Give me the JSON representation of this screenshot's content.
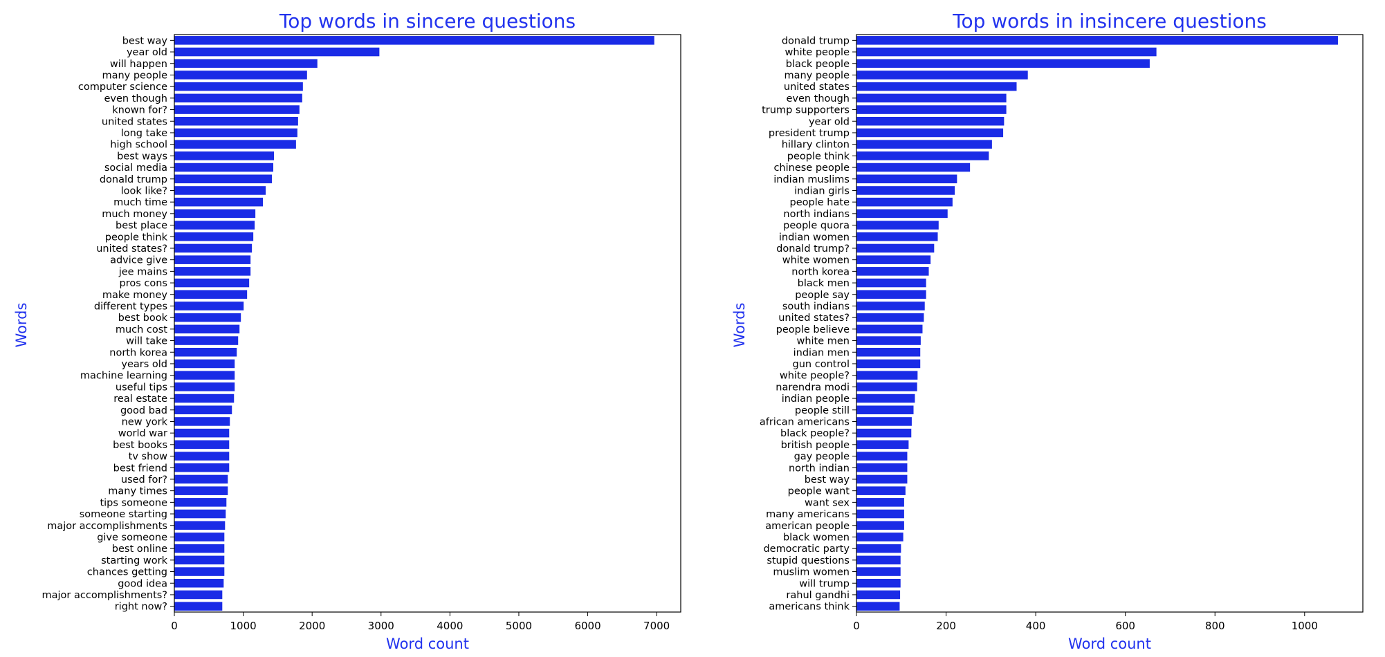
{
  "bar_color": "#1a2be6",
  "title_color": "#2233ee",
  "chart_data": [
    {
      "type": "bar",
      "orientation": "horizontal",
      "title": "Top words in sincere questions",
      "xlabel": "Word count",
      "ylabel": "Words",
      "xlim": [
        0,
        7350
      ],
      "xticks": [
        0,
        1000,
        2000,
        3000,
        4000,
        5000,
        6000,
        7000
      ],
      "categories": [
        "best way",
        "year old",
        "will happen",
        "many people",
        "computer science",
        "even though",
        "known for?",
        "united states",
        "long take",
        "high school",
        "best ways",
        "social media",
        "donald trump",
        "look like?",
        "much time",
        "much money",
        "best place",
        "people think",
        "united states?",
        "advice give",
        "jee mains",
        "pros cons",
        "make money",
        "different types",
        "best book",
        "much cost",
        "will take",
        "north korea",
        "years old",
        "machine learning",
        "useful tips",
        "real estate",
        "good bad",
        "new york",
        "world war",
        "best books",
        "tv show",
        "best friend",
        "used for?",
        "many times",
        "tips someone",
        "someone starting",
        "major accomplishments",
        "give someone",
        "best online",
        "starting work",
        "chances getting",
        "good idea",
        "major accomplishments?",
        "right now?"
      ],
      "values": [
        6970,
        2980,
        2080,
        1930,
        1870,
        1860,
        1820,
        1800,
        1790,
        1770,
        1450,
        1440,
        1420,
        1330,
        1290,
        1180,
        1170,
        1150,
        1130,
        1110,
        1110,
        1090,
        1060,
        1010,
        970,
        950,
        930,
        910,
        880,
        880,
        880,
        870,
        840,
        810,
        800,
        800,
        800,
        800,
        780,
        780,
        760,
        750,
        740,
        730,
        730,
        730,
        730,
        720,
        700,
        700
      ]
    },
    {
      "type": "bar",
      "orientation": "horizontal",
      "title": "Top words in insincere questions",
      "xlabel": "Word count",
      "ylabel": "Words",
      "xlim": [
        0,
        1130
      ],
      "xticks": [
        0,
        200,
        400,
        600,
        800,
        1000
      ],
      "categories": [
        "donald trump",
        "white people",
        "black people",
        "many people",
        "united states",
        "even though",
        "trump supporters",
        "year old",
        "president trump",
        "hillary clinton",
        "people think",
        "chinese people",
        "indian muslims",
        "indian girls",
        "people hate",
        "north indians",
        "people quora",
        "indian women",
        "donald trump?",
        "white women",
        "north korea",
        "black men",
        "people say",
        "south indians",
        "united states?",
        "people believe",
        "white men",
        "indian men",
        "gun control",
        "white people?",
        "narendra modi",
        "indian people",
        "people still",
        "african americans",
        "black people?",
        "british people",
        "gay people",
        "north indian",
        "best way",
        "people want",
        "want sex",
        "many americans",
        "american people",
        "black women",
        "democratic party",
        "stupid questions",
        "muslim women",
        "will trump",
        "rahul gandhi",
        "americans think"
      ],
      "values": [
        1075,
        670,
        655,
        383,
        358,
        335,
        335,
        330,
        328,
        303,
        296,
        254,
        225,
        220,
        215,
        204,
        184,
        182,
        174,
        166,
        162,
        156,
        156,
        153,
        151,
        148,
        144,
        143,
        143,
        137,
        136,
        131,
        128,
        124,
        123,
        117,
        114,
        114,
        114,
        110,
        107,
        107,
        107,
        105,
        100,
        99,
        99,
        99,
        98,
        97
      ]
    }
  ]
}
